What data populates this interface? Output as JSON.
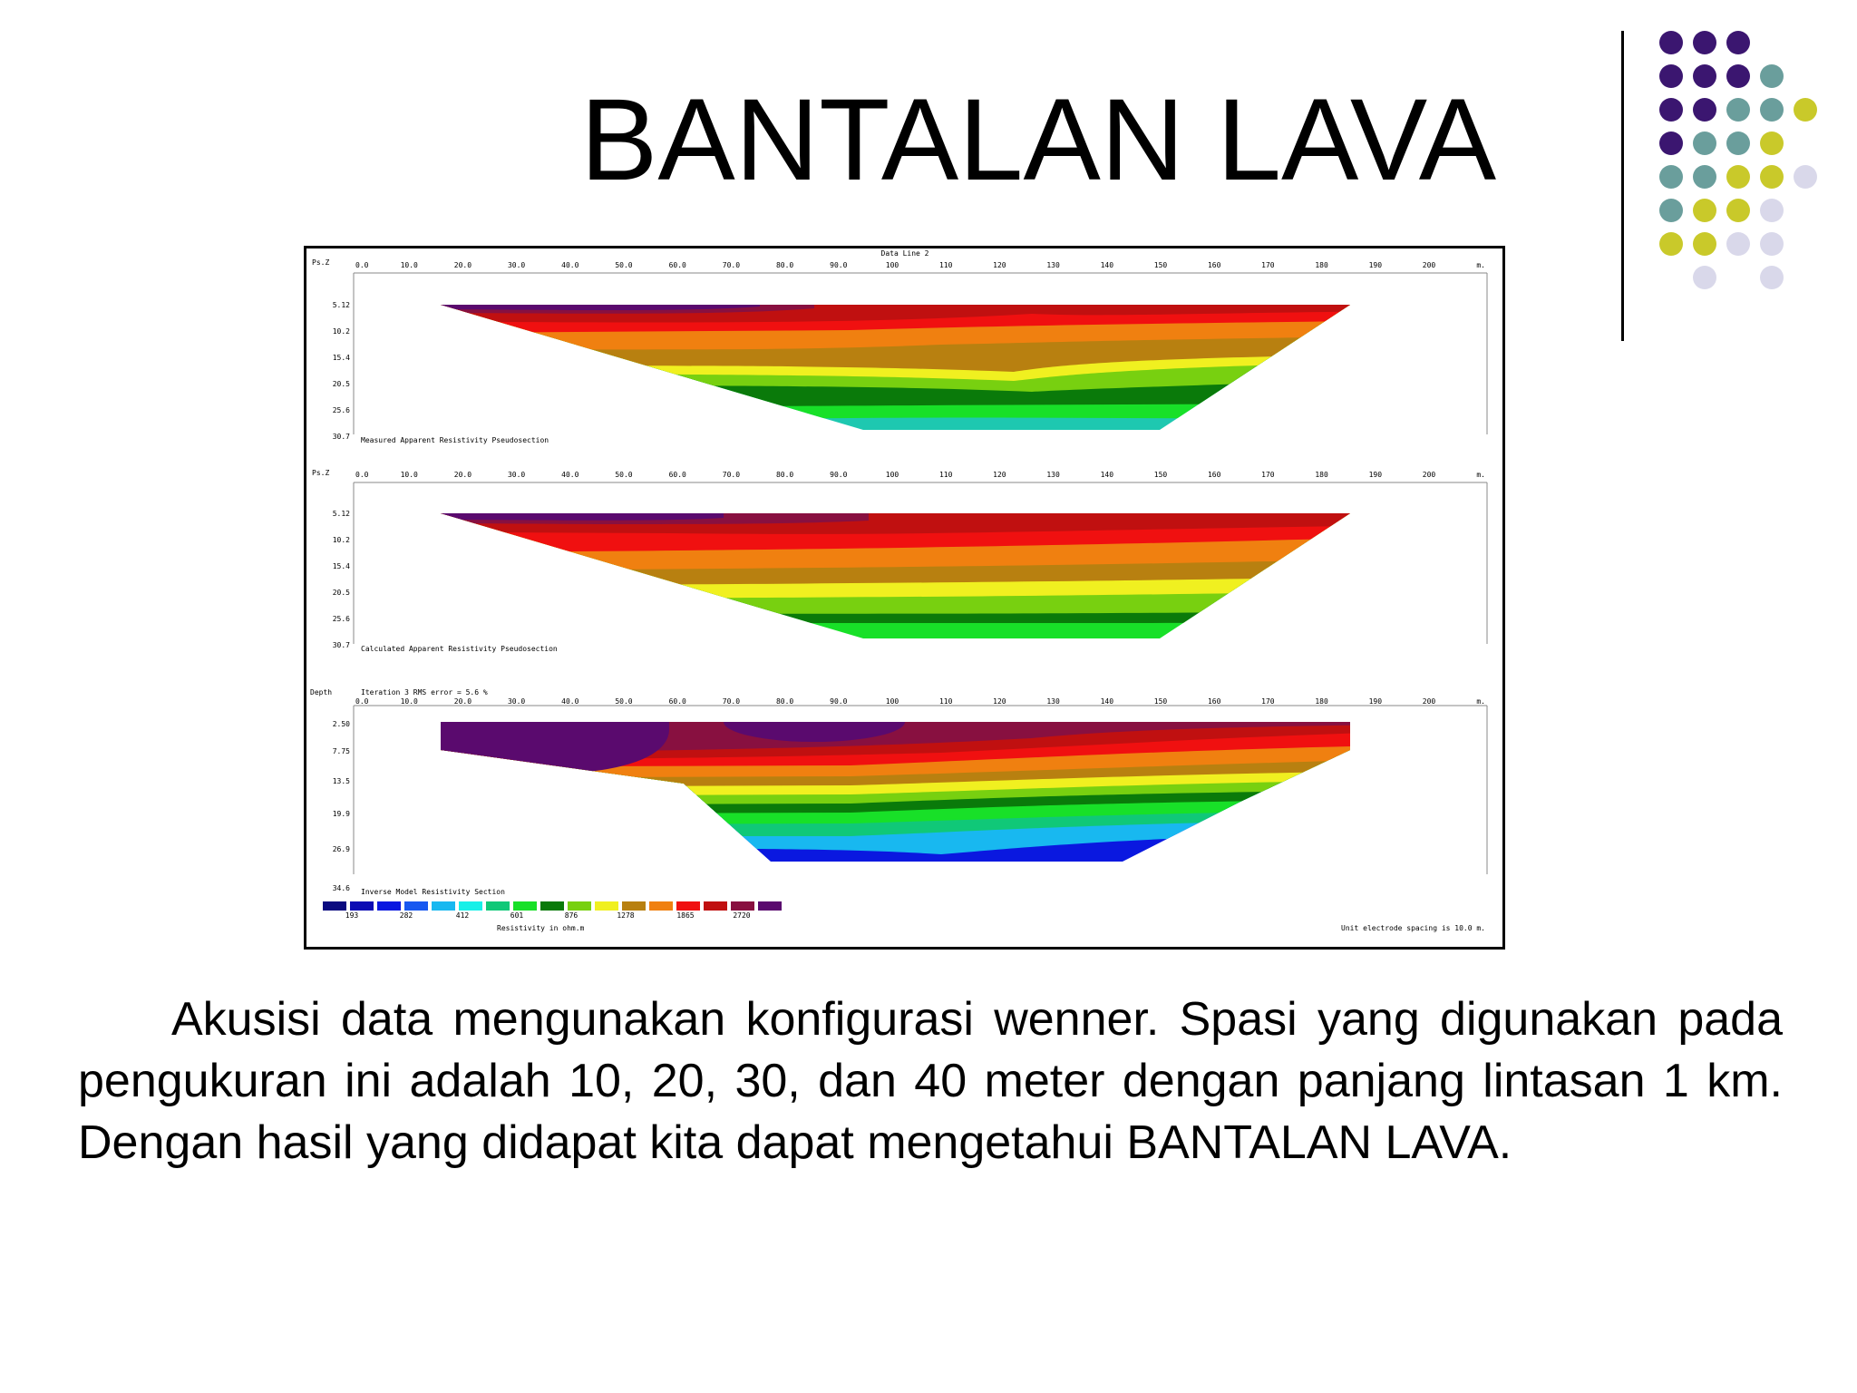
{
  "slide": {
    "title": "BANTALAN LAVA",
    "body": "Akusisi data mengunakan konfigurasi wenner. Spasi yang digunakan pada pengukuran ini adalah 10, 20, 30, dan 40  meter dengan panjang lintasan 1 km.  Dengan hasil  yang didapat kita dapat mengetahui BANTALAN LAVA."
  },
  "decor": {
    "dot_colors": [
      "#3b1670",
      "#6a9e9c",
      "#c9c92a",
      "#d9d8ea"
    ]
  },
  "figure": {
    "header": "Data Line 2",
    "x_ticks": [
      "0.0",
      "10.0",
      "20.0",
      "30.0",
      "40.0",
      "50.0",
      "60.0",
      "70.0",
      "80.0",
      "90.0",
      "100",
      "110",
      "120",
      "130",
      "140",
      "150",
      "160",
      "170",
      "180",
      "190",
      "200"
    ],
    "x_unit": "m.",
    "panels": [
      {
        "ylabel": "Ps.Z",
        "y_ticks": [
          "5.12",
          "10.2",
          "15.4",
          "20.5",
          "25.6",
          "30.7"
        ],
        "caption": "Measured Apparent Resistivity Pseudosection"
      },
      {
        "ylabel": "Ps.Z",
        "y_ticks": [
          "5.12",
          "10.2",
          "15.4",
          "20.5",
          "25.6",
          "30.7"
        ],
        "caption": "Calculated Apparent Resistivity Pseudosection"
      },
      {
        "ylabel": "Depth",
        "header": "Iteration 3 RMS error = 5.6 %",
        "y_ticks": [
          "2.50",
          "7.75",
          "13.5",
          "19.9",
          "26.9",
          "34.6"
        ],
        "caption": "Inverse Model Resistivity Section"
      }
    ],
    "legend": {
      "colors": [
        "#0b0b80",
        "#0c0cb4",
        "#0a18e0",
        "#1858f0",
        "#18b8f0",
        "#18f0e8",
        "#10c878",
        "#18e028",
        "#0a7a0a",
        "#78d010",
        "#f0f020",
        "#b88010",
        "#f08010",
        "#f01010",
        "#c01010",
        "#881040",
        "#5a0a6e"
      ],
      "values": [
        "193",
        "282",
        "412",
        "601",
        "876",
        "1278",
        "1865",
        "2720"
      ],
      "unit_label": "Resistivity in ohm.m"
    },
    "footnote": "Unit electrode spacing is 10.0 m."
  }
}
